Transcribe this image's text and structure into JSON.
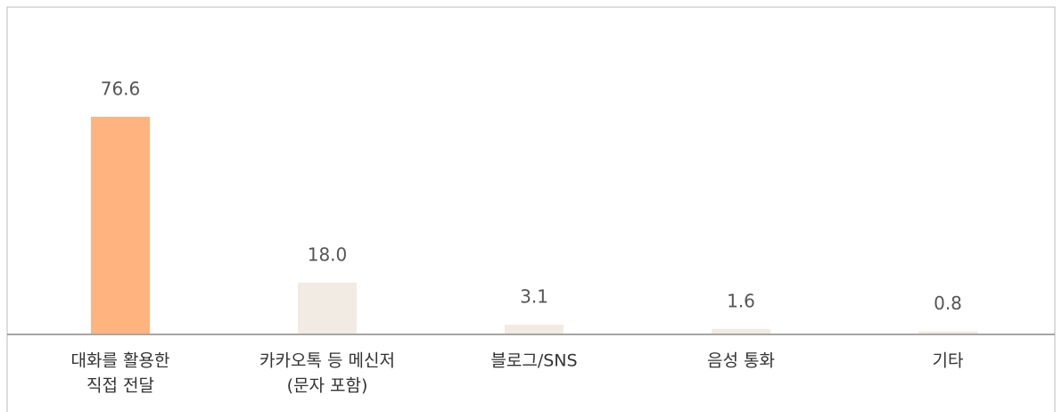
{
  "chart_data": {
    "type": "bar",
    "categories": [
      [
        "대화를 활용한",
        "직접 전달"
      ],
      [
        "카카오톡 등 메신저",
        "(문자 포함)"
      ],
      [
        "블로그/SNS"
      ],
      [
        "음성 통화"
      ],
      [
        "기타"
      ]
    ],
    "values": [
      76.6,
      18.0,
      3.1,
      1.6,
      0.8
    ],
    "value_labels": [
      "76.6",
      "18.0",
      "3.1",
      "1.6",
      "0.8"
    ],
    "colors": [
      "#ffb37f",
      "#f1ebe4",
      "#f1ebe4",
      "#f1ebe4",
      "#f1ebe4"
    ]
  }
}
